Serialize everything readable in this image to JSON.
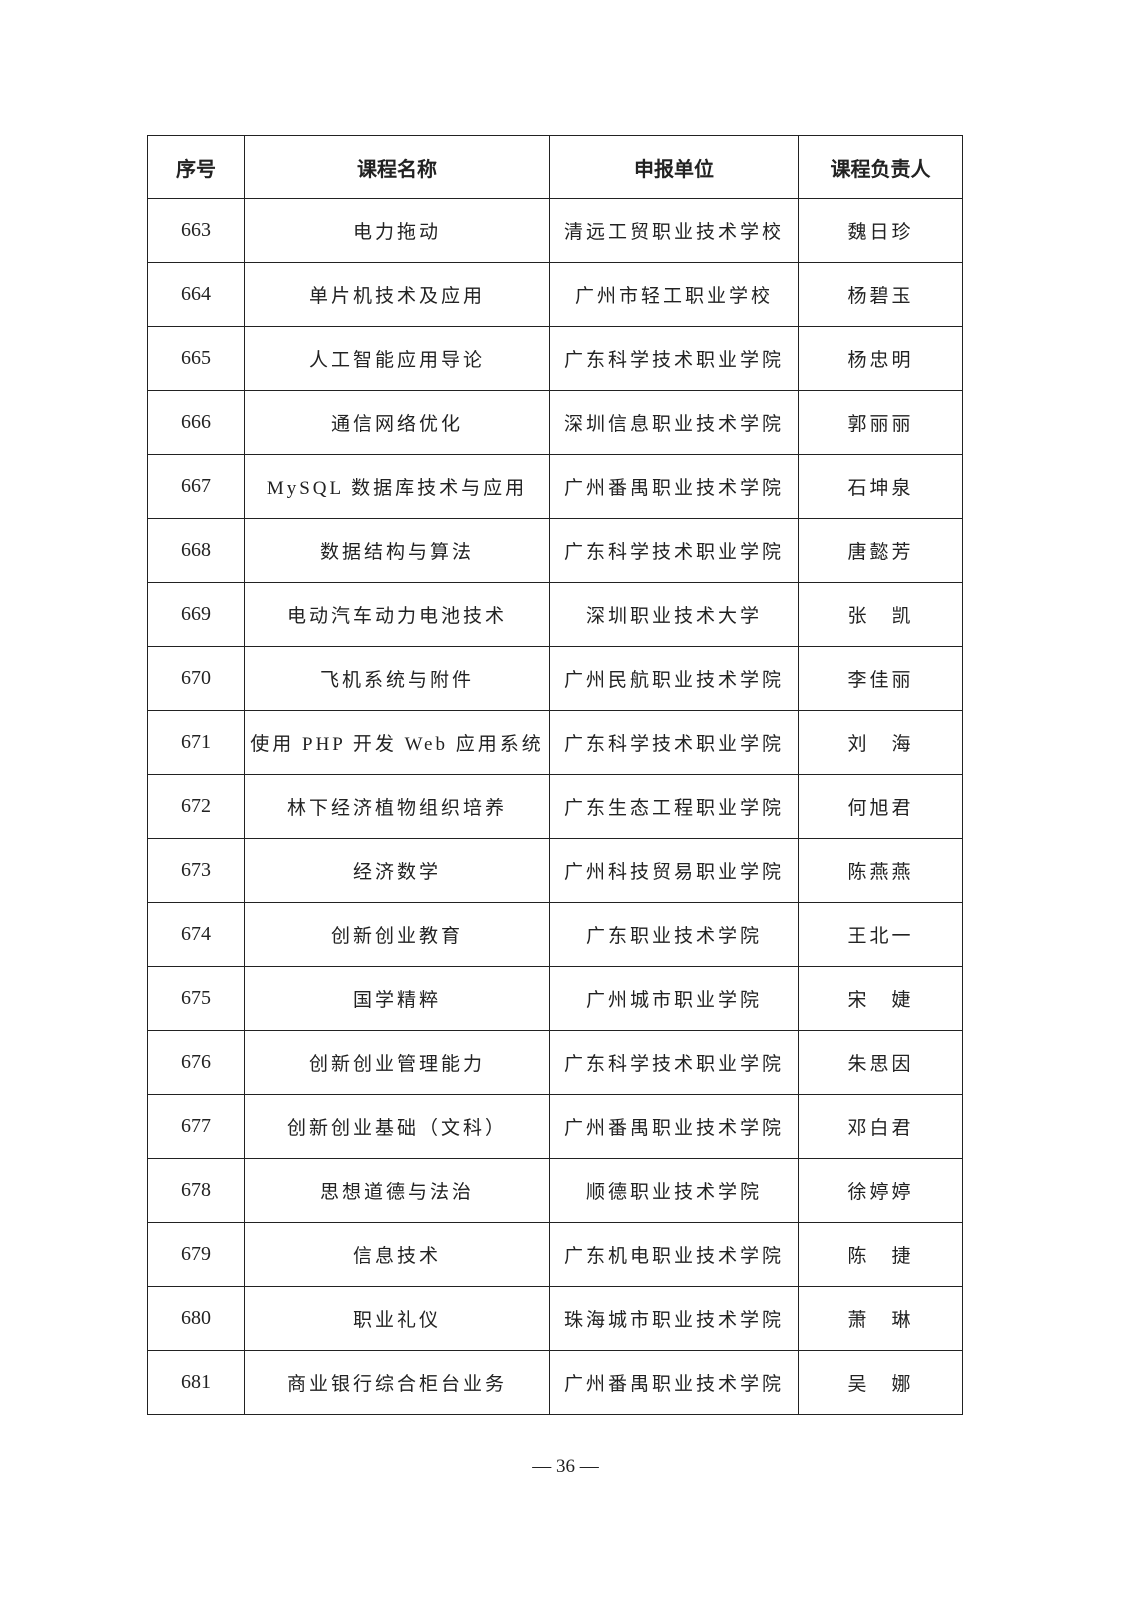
{
  "table": {
    "headers": [
      "序号",
      "课程名称",
      "申报单位",
      "课程负责人"
    ],
    "rows": [
      [
        "663",
        "电力拖动",
        "清远工贸职业技术学校",
        "魏日珍"
      ],
      [
        "664",
        "单片机技术及应用",
        "广州市轻工职业学校",
        "杨碧玉"
      ],
      [
        "665",
        "人工智能应用导论",
        "广东科学技术职业学院",
        "杨忠明"
      ],
      [
        "666",
        "通信网络优化",
        "深圳信息职业技术学院",
        "郭丽丽"
      ],
      [
        "667",
        "MySQL 数据库技术与应用",
        "广州番禺职业技术学院",
        "石坤泉"
      ],
      [
        "668",
        "数据结构与算法",
        "广东科学技术职业学院",
        "唐懿芳"
      ],
      [
        "669",
        "电动汽车动力电池技术",
        "深圳职业技术大学",
        "张　凯"
      ],
      [
        "670",
        "飞机系统与附件",
        "广州民航职业技术学院",
        "李佳丽"
      ],
      [
        "671",
        "使用 PHP 开发 Web 应用系统",
        "广东科学技术职业学院",
        "刘　海"
      ],
      [
        "672",
        "林下经济植物组织培养",
        "广东生态工程职业学院",
        "何旭君"
      ],
      [
        "673",
        "经济数学",
        "广州科技贸易职业学院",
        "陈燕燕"
      ],
      [
        "674",
        "创新创业教育",
        "广东职业技术学院",
        "王北一"
      ],
      [
        "675",
        "国学精粹",
        "广州城市职业学院",
        "宋　婕"
      ],
      [
        "676",
        "创新创业管理能力",
        "广东科学技术职业学院",
        "朱思因"
      ],
      [
        "677",
        "创新创业基础（文科）",
        "广州番禺职业技术学院",
        "邓白君"
      ],
      [
        "678",
        "思想道德与法治",
        "顺德职业技术学院",
        "徐婷婷"
      ],
      [
        "679",
        "信息技术",
        "广东机电职业技术学院",
        "陈　捷"
      ],
      [
        "680",
        "职业礼仪",
        "珠海城市职业技术学院",
        "萧　琳"
      ],
      [
        "681",
        "商业银行综合柜台业务",
        "广州番禺职业技术学院",
        "吴　娜"
      ]
    ]
  },
  "footer": {
    "page_number": "— 36 —"
  }
}
